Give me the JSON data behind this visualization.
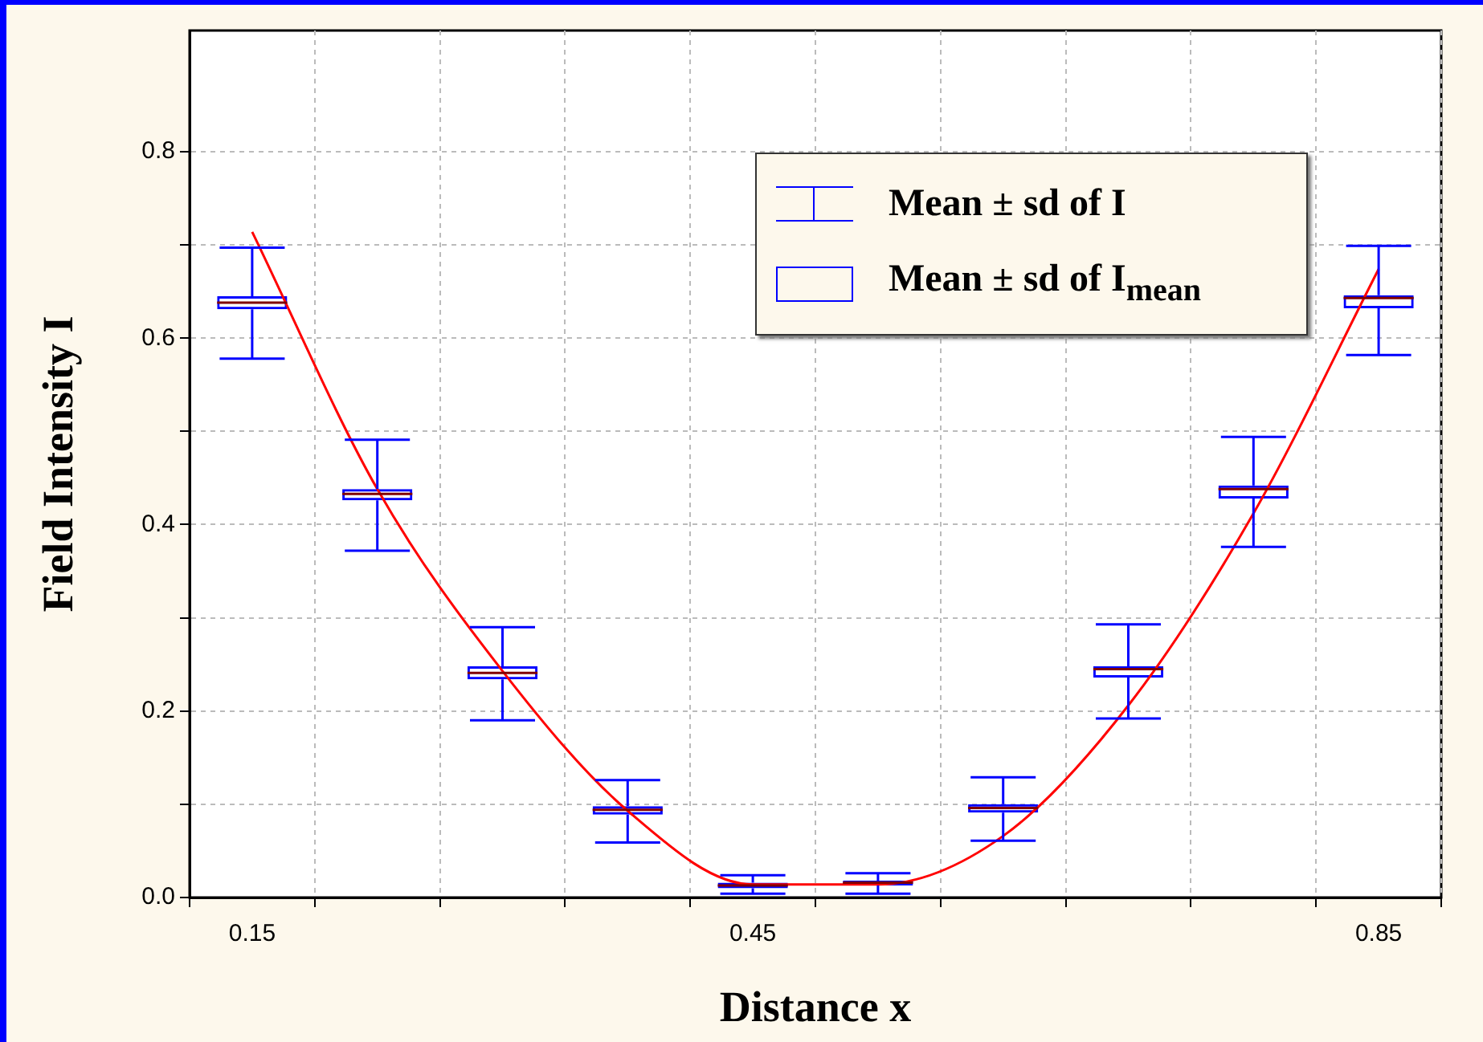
{
  "chart_data": {
    "type": "box",
    "xlabel": "Distance x",
    "ylabel": "Field Intensity I",
    "categories": [
      "0.15",
      null,
      null,
      null,
      "0.45",
      null,
      null,
      null,
      null,
      "0.85"
    ],
    "ylim": [
      0,
      0.93
    ],
    "yticks": [
      {
        "value": 0,
        "label": "0.0"
      },
      {
        "value": 0.1,
        "label": null
      },
      0.2,
      {
        "value": 0.3,
        "label": null
      },
      0.4,
      {
        "value": 0.5,
        "label": null
      },
      0.6,
      {
        "value": 0.7,
        "label": null
      },
      0.8
    ],
    "grid": true,
    "legend": "top right",
    "annotations": [
      "Mean ± sd of I"
    ],
    "series": [
      {
        "name": "Mean ± sd of I$_{mean}$",
        "color": "#0000ff",
        "boxes": [
          {
            "low": 0.578,
            "q1": 0.631,
            "median": 0.638,
            "q3": 0.645,
            "high": 0.697
          },
          {
            "low": 0.372,
            "q1": 0.426,
            "median": 0.433,
            "q3": 0.438,
            "high": 0.491
          },
          {
            "low": 0.19,
            "q1": 0.234,
            "median": 0.241,
            "q3": 0.248,
            "high": 0.29
          },
          {
            "low": 0.059,
            "q1": 0.089,
            "median": 0.094,
            "q3": 0.098,
            "high": 0.126
          },
          {
            "low": 0.004,
            "q1": 0.01,
            "median": 0.013,
            "q3": 0.016,
            "high": 0.024
          },
          {
            "low": 0.004,
            "q1": 0.013,
            "median": 0.016,
            "q3": 0.018,
            "high": 0.026
          },
          {
            "low": 0.061,
            "q1": 0.091,
            "median": 0.096,
            "q3": 0.1,
            "high": 0.129
          },
          {
            "low": 0.192,
            "q1": 0.236,
            "median": 0.245,
            "q3": 0.248,
            "high": 0.293
          },
          {
            "low": 0.376,
            "q1": 0.428,
            "median": 0.438,
            "q3": 0.442,
            "high": 0.494
          },
          {
            "low": 0.582,
            "q1": 0.632,
            "median": 0.643,
            "q3": 0.646,
            "high": 0.699
          }
        ]
      },
      {
        "type": "line",
        "color": "#ff0000",
        "values": [
          0.714,
          0.438,
          0.243,
          0.093,
          0.014,
          0.014,
          0.066,
          0.206,
          0.412,
          0.674
        ]
      }
    ]
  }
}
